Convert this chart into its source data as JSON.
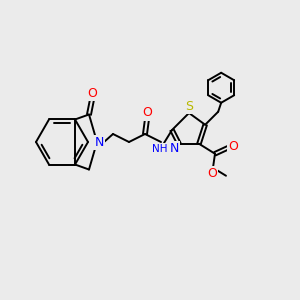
{
  "background_color": "#ebebeb",
  "bond_color": "#000000",
  "text_colors": {
    "N": "#0000ff",
    "O": "#ff0000",
    "S": "#b8b800",
    "H": "#000000",
    "C": "#000000"
  },
  "figsize": [
    3.0,
    3.0
  ],
  "dpi": 100
}
